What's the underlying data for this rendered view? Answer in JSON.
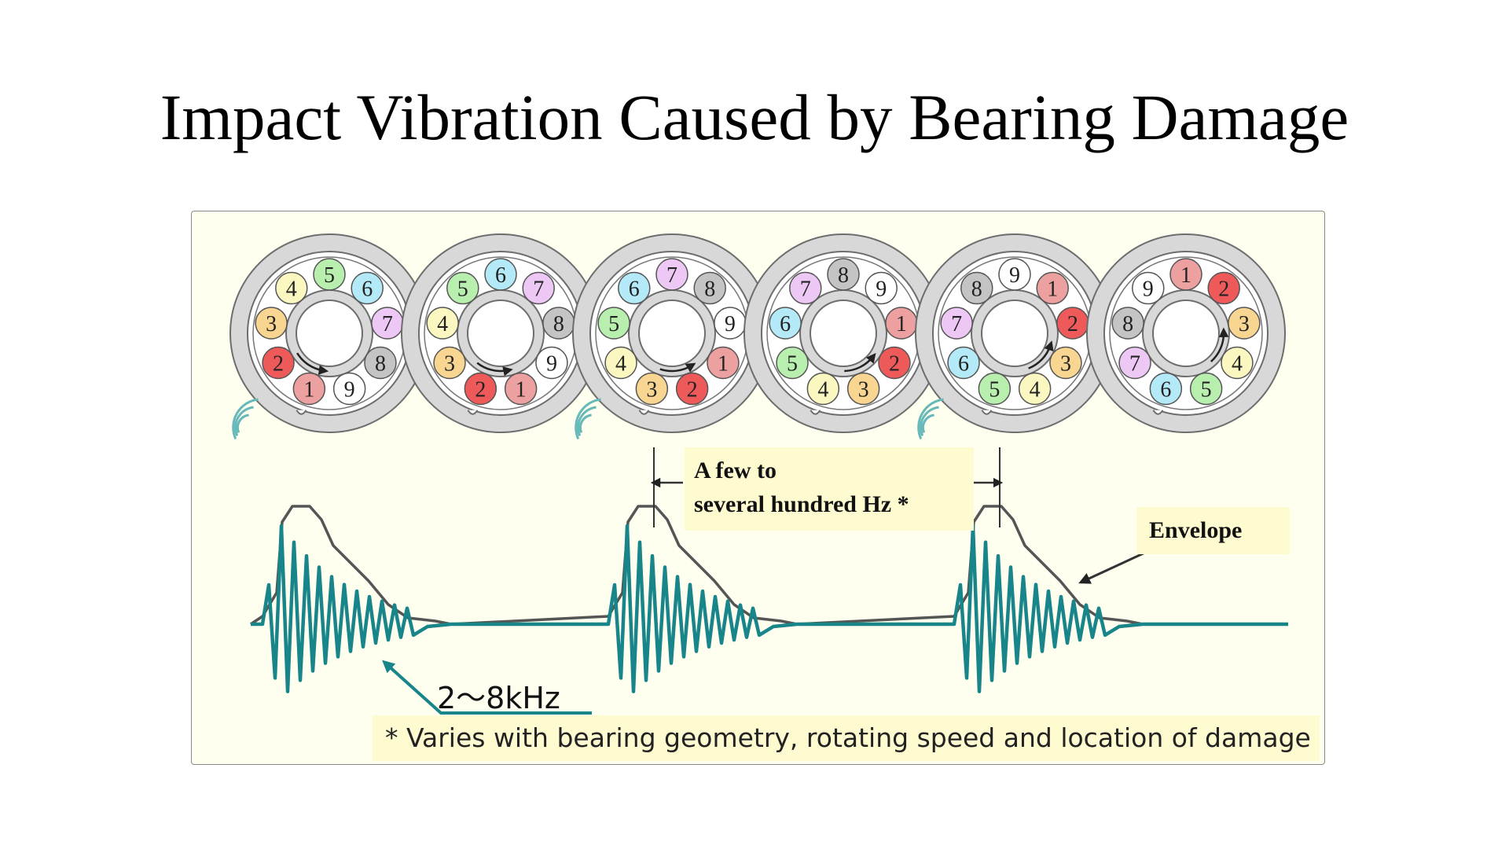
{
  "title": "Impact Vibration Caused by Bearing Damage",
  "bearings": {
    "ball_colors": {
      "1": "#eda0a0",
      "2": "#ee5a5a",
      "3": "#f8d591",
      "4": "#fbf7c0",
      "5": "#b9efae",
      "6": "#b4eaf8",
      "7": "#eec8f5",
      "8": "#c4c4c4",
      "9": "#ffffff"
    },
    "frames": [
      {
        "balls": [
          "1",
          "9",
          "8",
          "7",
          "6",
          "5",
          "4",
          "3",
          "2"
        ],
        "impact_icon": true
      },
      {
        "balls": [
          "1",
          "9",
          "8",
          "7",
          "6",
          "5",
          "4",
          "3",
          "2"
        ],
        "impact_icon": false
      },
      {
        "balls": [
          "1",
          "9",
          "8",
          "7",
          "6",
          "5",
          "4",
          "3",
          "2"
        ],
        "impact_icon": true
      },
      {
        "balls": [
          "1",
          "9",
          "8",
          "7",
          "6",
          "5",
          "4",
          "3",
          "2"
        ],
        "impact_icon": false
      },
      {
        "balls": [
          "1",
          "9",
          "8",
          "7",
          "6",
          "5",
          "4",
          "3",
          "2"
        ],
        "impact_icon": true
      },
      {
        "balls": [
          "1",
          "9",
          "8",
          "7",
          "6",
          "5",
          "4",
          "3",
          "2"
        ],
        "impact_icon": false
      }
    ]
  },
  "waveform": {
    "signal_color": "#17858a",
    "envelope_color": "#555555",
    "impacts": 3
  },
  "labels": {
    "interval": "A few to several hundred Hz *",
    "interval_line1": "A few to",
    "interval_line2": "several hundred Hz *",
    "envelope": "Envelope",
    "frequency": "2～8kHz",
    "footnote": "* Varies with bearing geometry, rotating speed and location of damage"
  }
}
